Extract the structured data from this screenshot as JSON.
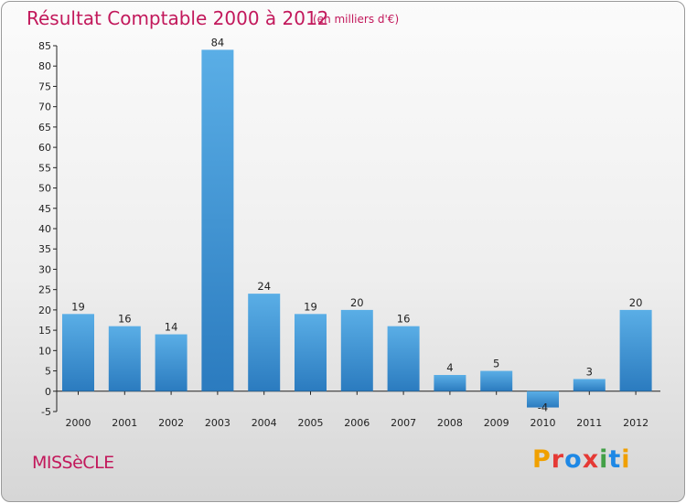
{
  "header": {
    "title": "Résultat Comptable 2000 à 2012",
    "subtitle": "(en milliers d'€)"
  },
  "footer": {
    "commune": "MISSèCLE",
    "logo_text": "Proxiti"
  },
  "colors": {
    "title": "#c2185b",
    "bar_top": "#5aaee6",
    "bar_bottom": "#2b7bbf",
    "logo": [
      "#f0a000",
      "#e53935",
      "#1e88e5",
      "#e53935",
      "#43a047",
      "#1e88e5",
      "#f0a000"
    ]
  },
  "chart_data": {
    "type": "bar",
    "title": "Résultat Comptable 2000 à 2012",
    "subtitle": "(en milliers d'€)",
    "categories": [
      "2000",
      "2001",
      "2002",
      "2003",
      "2004",
      "2005",
      "2006",
      "2007",
      "2008",
      "2009",
      "2010",
      "2011",
      "2012"
    ],
    "values": [
      19,
      16,
      14,
      84,
      24,
      19,
      20,
      16,
      4,
      5,
      -4,
      3,
      20
    ],
    "data_labels": [
      "19",
      "16",
      "14",
      "84",
      "24",
      "19",
      "20",
      "16",
      "4",
      "5",
      "-4",
      "3",
      "20"
    ],
    "ylim": [
      -5,
      85
    ],
    "yticks": [
      "-5",
      "0",
      "5",
      "10",
      "15",
      "20",
      "25",
      "30",
      "35",
      "40",
      "45",
      "50",
      "55",
      "60",
      "65",
      "70",
      "75",
      "80",
      "85"
    ],
    "xlabel": "",
    "ylabel": "",
    "grid": false,
    "legend": "none"
  }
}
